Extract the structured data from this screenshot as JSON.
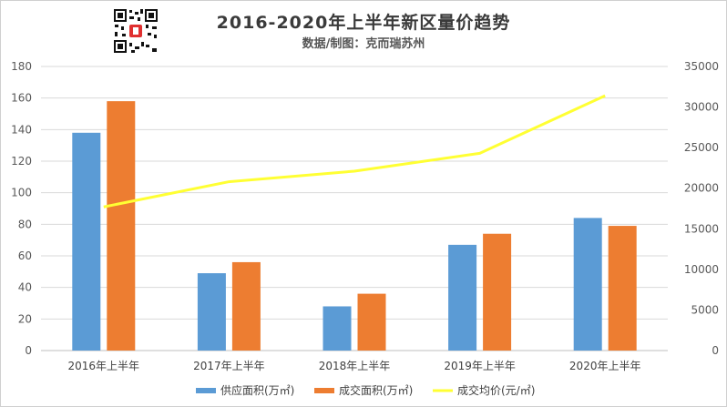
{
  "header": {
    "title": "2016-2020年上半年新区量价趋势",
    "subtitle": "数据/制图：克而瑞苏州"
  },
  "chart_data": {
    "type": "bar",
    "categories": [
      "2016年上半年",
      "2017年上半年",
      "2018年上半年",
      "2019年上半年",
      "2020年上半年"
    ],
    "series": [
      {
        "name": "供应面积(万㎡)",
        "type": "bar",
        "axis": "left",
        "color": "#5b9bd5",
        "values": [
          138,
          49,
          28,
          67,
          84
        ]
      },
      {
        "name": "成交面积(万㎡)",
        "type": "bar",
        "axis": "left",
        "color": "#ed7d31",
        "values": [
          158,
          56,
          36,
          74,
          79
        ]
      },
      {
        "name": "成交均价(元/㎡)",
        "type": "line",
        "axis": "right",
        "color": "#ffff33",
        "values": [
          17700,
          20800,
          22100,
          24300,
          31400
        ]
      }
    ],
    "ylim_left": [
      0,
      180
    ],
    "yticks_left": [
      0,
      20,
      40,
      60,
      80,
      100,
      120,
      140,
      160,
      180
    ],
    "ylim_right": [
      0,
      35000
    ],
    "yticks_right": [
      0,
      5000,
      10000,
      15000,
      20000,
      25000,
      30000,
      35000
    ],
    "grid": true,
    "legend_position": "bottom"
  }
}
